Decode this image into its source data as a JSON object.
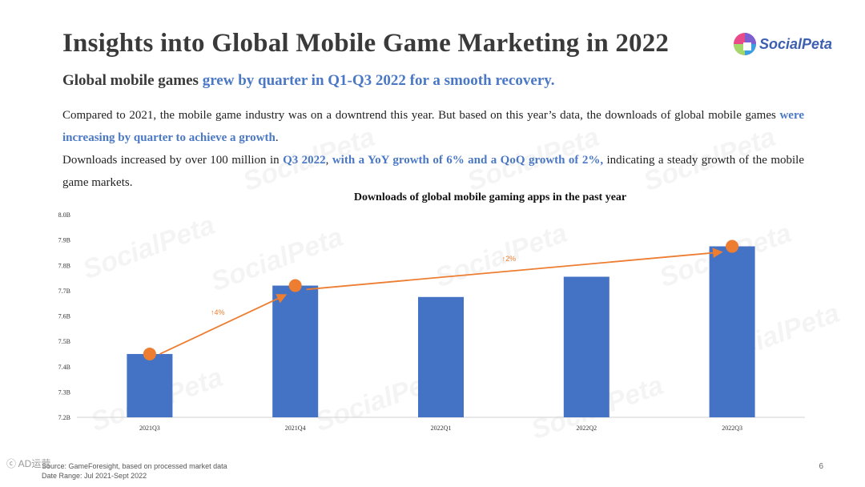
{
  "header": {
    "title": "Insights into Global Mobile Game Marketing in 2022",
    "logo_text": "SocialPeta"
  },
  "subtitle": {
    "lead": "Global mobile games ",
    "highlight": "grew by quarter in Q1-Q3 2022 for a smooth recovery."
  },
  "paragraph1": {
    "text": "Compared to 2021, the mobile game industry was on a downtrend this year. But based on this year’s data, the downloads of global mobile games ",
    "highlight": "were increasing by quarter to achieve a growth",
    "end": "."
  },
  "paragraph2": {
    "t1": "Downloads increased by over 100 million in ",
    "h1": "Q3 2022",
    "t2": ", ",
    "h2": "with a YoY growth of 6% and a QoQ growth of 2%,",
    "t3": " indicating a steady growth of the mobile game markets."
  },
  "watermark": "SocialPeta",
  "chart_data": {
    "type": "bar",
    "title": "Downloads of global mobile gaming apps in the past year",
    "categories": [
      "2021Q3",
      "2021Q4",
      "2022Q1",
      "2022Q2",
      "2022Q3"
    ],
    "values": [
      7.45,
      7.72,
      7.675,
      7.755,
      7.875
    ],
    "ylim": [
      7.2,
      8.0
    ],
    "yticks": [
      7.2,
      7.3,
      7.4,
      7.5,
      7.6,
      7.7,
      7.8,
      7.9,
      8.0
    ],
    "ytick_labels": [
      "7.2B",
      "7.3B",
      "7.4B",
      "7.5B",
      "7.6B",
      "7.7B",
      "7.8B",
      "7.9B",
      "8.0B"
    ],
    "trend_points": [
      {
        "category": "2021Q3",
        "value": 7.45
      },
      {
        "category": "2021Q4",
        "value": 7.72
      },
      {
        "category": "2022Q3",
        "value": 7.875
      }
    ],
    "annotations": [
      {
        "label": "↑4%",
        "between": [
          "2021Q3",
          "2021Q4"
        ]
      },
      {
        "label": "↑2%",
        "between": [
          "2021Q4",
          "2022Q3"
        ]
      }
    ],
    "bar_color": "#4472c4",
    "marker_color": "#ed7d31"
  },
  "footer": {
    "source": "Source: GameForesight, based on processed market data",
    "date_range": "Date Range: Jul 2021-Sept 2022"
  },
  "page_number": "6",
  "corner_mark": "ⓒ AD运营"
}
